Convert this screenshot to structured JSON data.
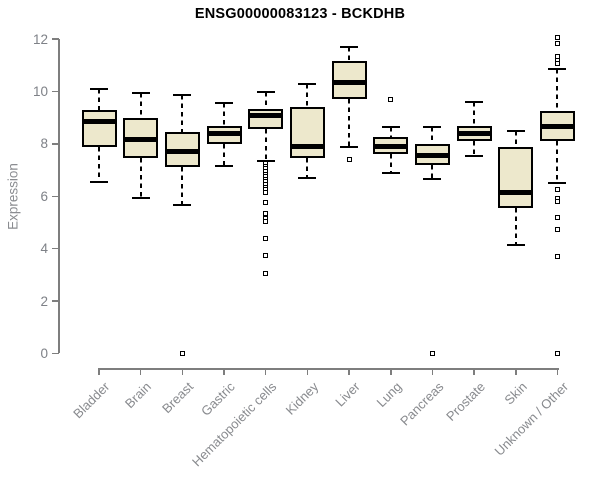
{
  "chart_data": {
    "type": "boxplot",
    "title": "ENSG00000083123 - BCKDHB",
    "ylabel": "Expression",
    "xlabel": "",
    "ylim": [
      0,
      12.2
    ],
    "yticks": [
      0,
      2,
      4,
      6,
      8,
      10,
      12
    ],
    "grid": false,
    "legend": "none",
    "categories": [
      "Bladder",
      "Brain",
      "Breast",
      "Gastric",
      "Hematopoietic cells",
      "Kidney",
      "Liver",
      "Lung",
      "Pancreas",
      "Prostate",
      "Skin",
      "Unknown / Other"
    ],
    "boxes": [
      {
        "category": "Bladder",
        "whisker_low": 6.55,
        "q1": 7.9,
        "median": 8.85,
        "q3": 9.3,
        "whisker_high": 10.1,
        "outliers": []
      },
      {
        "category": "Brain",
        "whisker_low": 5.95,
        "q1": 7.45,
        "median": 8.15,
        "q3": 9.0,
        "whisker_high": 9.95,
        "outliers": []
      },
      {
        "category": "Breast",
        "whisker_low": 5.65,
        "q1": 7.1,
        "median": 7.7,
        "q3": 8.45,
        "whisker_high": 9.85,
        "outliers": [
          0
        ]
      },
      {
        "category": "Gastric",
        "whisker_low": 7.15,
        "q1": 8.0,
        "median": 8.4,
        "q3": 8.7,
        "whisker_high": 9.55,
        "outliers": []
      },
      {
        "category": "Hematopoietic cells",
        "whisker_low": 7.35,
        "q1": 8.55,
        "median": 9.1,
        "q3": 9.35,
        "whisker_high": 10.0,
        "outliers": [
          7.25,
          7.15,
          7.05,
          6.95,
          6.85,
          6.75,
          6.65,
          6.55,
          6.45,
          6.35,
          6.25,
          6.15,
          5.75,
          5.35,
          5.15,
          5.05,
          4.4,
          3.75,
          3.05
        ]
      },
      {
        "category": "Kidney",
        "whisker_low": 6.7,
        "q1": 7.45,
        "median": 7.9,
        "q3": 9.4,
        "whisker_high": 10.3,
        "outliers": []
      },
      {
        "category": "Liver",
        "whisker_low": 7.9,
        "q1": 9.7,
        "median": 10.35,
        "q3": 11.15,
        "whisker_high": 11.7,
        "outliers": [
          7.4
        ]
      },
      {
        "category": "Lung",
        "whisker_low": 6.9,
        "q1": 7.6,
        "median": 7.9,
        "q3": 8.25,
        "whisker_high": 8.65,
        "outliers": [
          9.7
        ]
      },
      {
        "category": "Pancreas",
        "whisker_low": 6.65,
        "q1": 7.2,
        "median": 7.55,
        "q3": 8.0,
        "whisker_high": 8.65,
        "outliers": [
          0
        ]
      },
      {
        "category": "Prostate",
        "whisker_low": 7.55,
        "q1": 8.1,
        "median": 8.4,
        "q3": 8.7,
        "whisker_high": 9.6,
        "outliers": []
      },
      {
        "category": "Skin",
        "whisker_low": 4.15,
        "q1": 5.55,
        "median": 6.15,
        "q3": 7.9,
        "whisker_high": 8.5,
        "outliers": []
      },
      {
        "category": "Unknown / Other",
        "whisker_low": 6.5,
        "q1": 8.1,
        "median": 8.65,
        "q3": 9.25,
        "whisker_high": 10.85,
        "outliers": [
          12.05,
          11.85,
          11.35,
          11.2,
          11.05,
          6.25,
          5.9,
          5.8,
          5.2,
          4.75,
          3.7,
          0
        ]
      }
    ],
    "colors": {
      "box_fill": "#ede8cc",
      "box_stroke": "#000000",
      "median": "#000000",
      "axis": "#7e7e7e",
      "tick_text": "#7e8187",
      "category_text": "#888a8e",
      "title_text": "#000000",
      "background": "#ffffff"
    }
  }
}
